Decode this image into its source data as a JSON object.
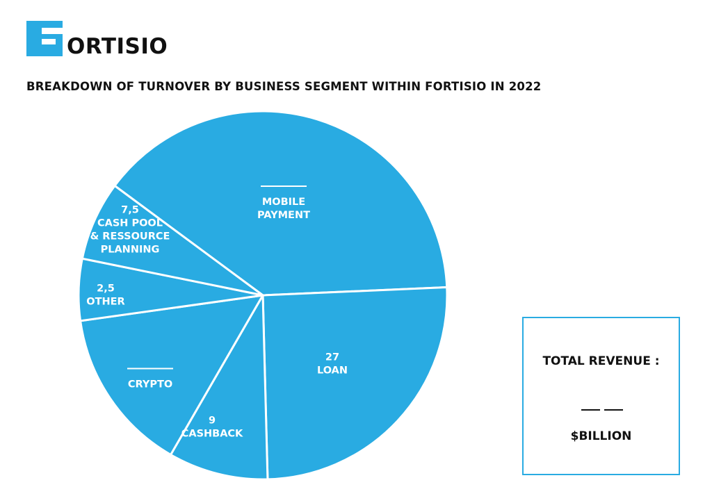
{
  "brand": {
    "logo_text": "ORTISIO",
    "logo_letter": "F",
    "accent_color": "#29abe2"
  },
  "title": "BREAKDOWN OF TURNOVER BY BUSINESS SEGMENT WITHIN FORTISIO IN 2022",
  "chart_data": {
    "type": "pie",
    "title": "BREAKDOWN OF TURNOVER BY BUSINESS SEGMENT WITHIN FORTISIO IN 2022",
    "slice_color": "#29abe2",
    "slice_border_color": "#ffffff",
    "slices": [
      {
        "label": "MOBILE PAYMENT",
        "value": null,
        "value_text": "",
        "label_lines": [
          "MOBILE",
          "PAYMENT"
        ],
        "blank_value": true
      },
      {
        "label": "LOAN",
        "value": 27,
        "value_text": "27",
        "label_lines": [
          "LOAN"
        ],
        "blank_value": false
      },
      {
        "label": "CASHBACK",
        "value": 9,
        "value_text": "9",
        "label_lines": [
          "CASHBACK"
        ],
        "blank_value": false
      },
      {
        "label": "CRYPTO",
        "value": null,
        "value_text": "",
        "label_lines": [
          "CRYPTO"
        ],
        "blank_value": true
      },
      {
        "label": "OTHER",
        "value": 2.5,
        "value_text": "2,5",
        "label_lines": [
          "OTHER"
        ],
        "blank_value": false
      },
      {
        "label": "CASH POOL & RESSOURCE PLANNING",
        "value": 7.5,
        "value_text": "7,5",
        "label_lines": [
          "CASH POOL",
          "& RESSOURCE",
          "PLANNING"
        ],
        "blank_value": false
      }
    ]
  },
  "total_box": {
    "label": "TOTAL REVENUE :",
    "unit": "$BILLION"
  }
}
